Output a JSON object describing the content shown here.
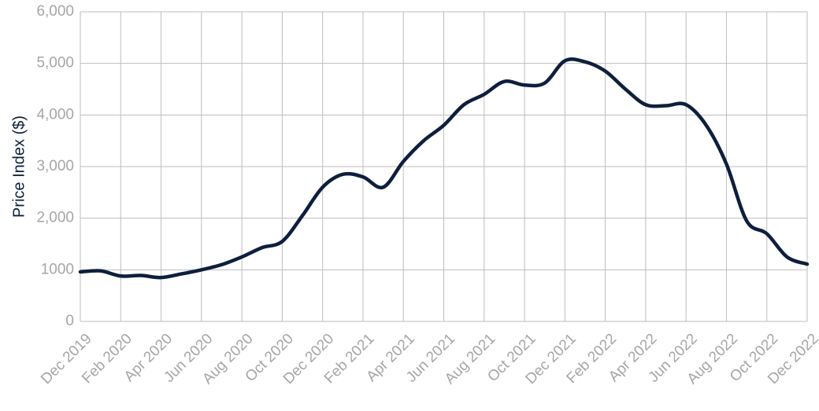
{
  "chart_data": {
    "type": "line",
    "y_label": "Price Index ($)",
    "categories": [
      "Dec 2019",
      null,
      "Feb 2020",
      null,
      "Apr 2020",
      null,
      "Jun 2020",
      null,
      "Aug 2020",
      null,
      "Oct 2020",
      null,
      "Dec 2020",
      null,
      "Feb 2021",
      null,
      "Apr 2021",
      null,
      "Jun 2021",
      null,
      "Aug 2021",
      null,
      "Oct 2021",
      null,
      "Dec 2021",
      null,
      "Feb 2022",
      null,
      "Apr 2022",
      null,
      "Jun 2022",
      null,
      "Aug 2022",
      null,
      "Oct 2022",
      null,
      "Dec 2022"
    ],
    "series": [
      {
        "name": "Price Index",
        "color": "#0d1f3c",
        "values": [
          960,
          980,
          880,
          890,
          850,
          920,
          1000,
          1100,
          1250,
          1430,
          1550,
          2050,
          2600,
          2850,
          2800,
          2600,
          3100,
          3500,
          3800,
          4200,
          4400,
          4650,
          4580,
          4620,
          5050,
          5030,
          4850,
          4500,
          4200,
          4180,
          4200,
          3800,
          3050,
          1950,
          1700,
          1250,
          1110
        ]
      }
    ],
    "ylim": [
      0,
      6000
    ],
    "yticks": [
      0,
      1000,
      {
        "value": 2000,
        "label": "2,000"
      },
      {
        "value": 3000,
        "label": "3,000"
      },
      {
        "value": 4000,
        "label": "4,000"
      },
      {
        "value": 5000,
        "label": "5,000"
      },
      {
        "value": 6000,
        "label": "6,000"
      }
    ],
    "grid": true
  }
}
